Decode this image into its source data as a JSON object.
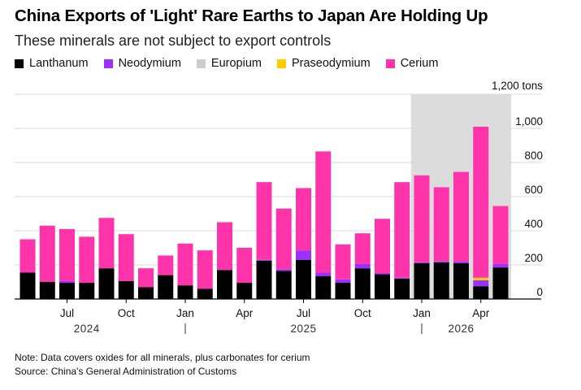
{
  "header": {
    "title": "China Exports of 'Light' Rare Earths to Japan Are Holding Up",
    "subtitle": "These minerals are not subject to export controls"
  },
  "footer": {
    "note": "Note: Data covers oxides for all minerals, plus carbonates for cerium",
    "source": "Source: China's General Administration of Customs"
  },
  "chart_data": {
    "type": "bar",
    "stacked": true,
    "title": "China Exports of 'Light' Rare Earths to Japan Are Holding Up",
    "subtitle": "These minerals are not subject to export controls",
    "ylabel": "",
    "y_unit_label": "1,200 tons",
    "ylim": [
      0,
      1200
    ],
    "y_ticks": [
      0,
      200,
      400,
      600,
      800,
      1000
    ],
    "y_tick_labels": [
      "0",
      "200",
      "400",
      "600",
      "800",
      "1,000"
    ],
    "y_axis_side": "right",
    "grid": true,
    "legend_position": "top-left",
    "highlight": {
      "from_category": "2026-01",
      "to_category": "2026-05",
      "color": "#dcdcdc"
    },
    "categories": [
      "2024-05",
      "2024-06",
      "2024-07",
      "2024-08",
      "2024-09",
      "2024-10",
      "2024-11",
      "2024-12",
      "2025-01",
      "2025-02",
      "2025-03",
      "2025-04",
      "2025-05",
      "2025-06",
      "2025-07",
      "2025-08",
      "2025-09",
      "2025-10",
      "2025-11",
      "2025-12",
      "2026-01",
      "2026-02",
      "2026-03",
      "2026-04",
      "2026-05"
    ],
    "x_tick_labels": [
      {
        "category": "2024-07",
        "label": "Jul"
      },
      {
        "category": "2024-10",
        "label": "Oct"
      },
      {
        "category": "2025-01",
        "label": "Jan"
      },
      {
        "category": "2025-04",
        "label": "Apr"
      },
      {
        "category": "2025-07",
        "label": "Jul"
      },
      {
        "category": "2025-10",
        "label": "Oct"
      },
      {
        "category": "2026-01",
        "label": "Jan"
      },
      {
        "category": "2026-04",
        "label": "Apr"
      }
    ],
    "year_labels": [
      {
        "label": "2024",
        "center_category": "2024-08"
      },
      {
        "label": "2025",
        "center_category": "2025-07"
      },
      {
        "label": "2026",
        "center_category": "2026-03"
      }
    ],
    "year_dividers": [
      "2025-01",
      "2026-01"
    ],
    "series": [
      {
        "name": "Lanthanum",
        "color": "#000000",
        "values": [
          155,
          100,
          95,
          95,
          180,
          105,
          70,
          140,
          80,
          60,
          170,
          95,
          225,
          165,
          230,
          135,
          95,
          180,
          145,
          120,
          210,
          215,
          210,
          75,
          185
        ]
      },
      {
        "name": "Neodymium",
        "color": "#9b30ff",
        "values": [
          0,
          0,
          10,
          0,
          0,
          0,
          0,
          0,
          0,
          0,
          0,
          0,
          5,
          10,
          55,
          20,
          20,
          25,
          5,
          5,
          5,
          5,
          10,
          35,
          20
        ]
      },
      {
        "name": "Europium",
        "color": "#cccccc",
        "values": [
          0,
          0,
          0,
          0,
          0,
          0,
          0,
          0,
          0,
          0,
          0,
          0,
          0,
          0,
          0,
          0,
          0,
          0,
          0,
          0,
          0,
          0,
          0,
          0,
          0
        ]
      },
      {
        "name": "Praseodymium",
        "color": "#ffcc00",
        "values": [
          0,
          0,
          0,
          0,
          0,
          0,
          0,
          0,
          0,
          0,
          0,
          0,
          0,
          0,
          0,
          0,
          0,
          0,
          0,
          0,
          0,
          0,
          0,
          15,
          0
        ]
      },
      {
        "name": "Cerium",
        "color": "#ff33aa",
        "values": [
          195,
          330,
          305,
          270,
          295,
          275,
          110,
          115,
          245,
          225,
          280,
          205,
          455,
          355,
          365,
          710,
          205,
          180,
          320,
          560,
          510,
          435,
          525,
          885,
          340
        ]
      }
    ]
  }
}
